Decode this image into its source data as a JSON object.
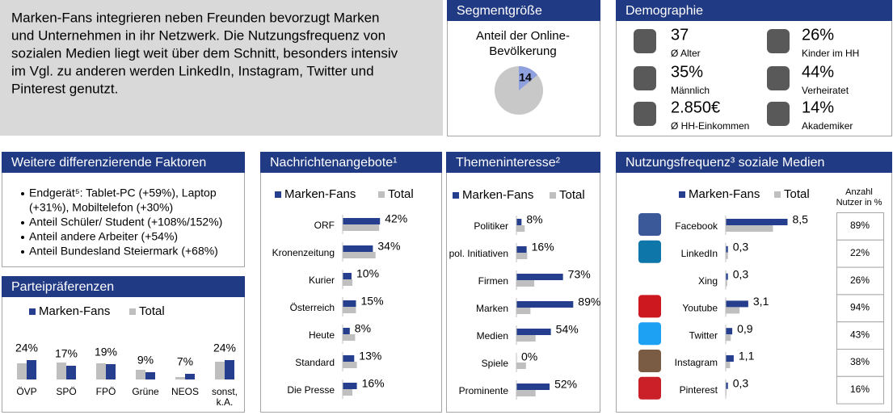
{
  "intro": {
    "lines": [
      "Marken-Fans integrieren neben Freunden bevorzugt Marken",
      "und Unternehmen in ihr Netzwerk. Die Nutzungsfrequenz von",
      "sozialen Medien liegt weit über dem Schnitt, besonders intensiv",
      "im Vgl. zu anderen werden LinkedIn, Instagram, Twitter und",
      "Pinterest genutzt."
    ]
  },
  "demographics": {
    "title": "Demographie",
    "items": [
      {
        "value": "37",
        "label": "Ø Alter"
      },
      {
        "value": "26%",
        "label": "Kinder im HH"
      },
      {
        "value": "35%",
        "label": "Männlich"
      },
      {
        "value": "44%",
        "label": "Verheiratet"
      },
      {
        "value": "2.850€",
        "label": "Ø HH-Einkommen"
      },
      {
        "value": "14%",
        "label": "Akademiker"
      }
    ]
  },
  "factors": {
    "title": "Weitere differenzierende Faktoren",
    "items": [
      [
        "Endgerät⁵: Tablet-PC (+59%), Laptop",
        "(+31%), Mobiltelefon (+30%)"
      ],
      [
        "Anteil Schüler/ Student (+108%/152%)"
      ],
      [
        "Anteil andere Arbeiter (+54%)"
      ],
      [
        "Anteil Bundesland Steiermark (+68%)"
      ]
    ]
  },
  "chart_data": [
    {
      "type": "pie",
      "title": "Segmentgröße",
      "subtitle": [
        "Anteil der Online-",
        "Bevölkerung"
      ],
      "values": [
        14
      ],
      "color": "#8fa0de"
    },
    {
      "type": "bar",
      "orientation": "vertical",
      "title": "Parteipräferenzen",
      "categories": [
        "ÖVP",
        "SPÖ",
        "FPÖ",
        "Grüne",
        "NEOS",
        "sonst, k.A."
      ],
      "ylim": [
        0,
        60
      ],
      "series": [
        {
          "name": "Marken-Fans",
          "color": "#253f8e",
          "values": [
            24,
            17,
            19,
            9,
            7,
            24
          ],
          "value_labels": [
            "24%",
            "17%",
            "19%",
            "9%",
            "7%",
            "24%"
          ]
        },
        {
          "name": "Total",
          "color": "#bfbfbf",
          "values": [
            20,
            21,
            20,
            12,
            3,
            22
          ]
        }
      ]
    },
    {
      "type": "bar",
      "orientation": "horizontal",
      "title": "Nachrichtenangebote¹",
      "categories": [
        "ORF",
        "Kronenzeitung",
        "Kurier",
        "Österreich",
        "Heute",
        "Standard",
        "Die Presse"
      ],
      "xlim": [
        0,
        100
      ],
      "series": [
        {
          "name": "Marken-Fans",
          "color": "#253f8e",
          "values": [
            42,
            34,
            10,
            15,
            8,
            13,
            16
          ],
          "value_labels": [
            "42%",
            "34%",
            "10%",
            "15%",
            "8%",
            "13%",
            "16%"
          ]
        },
        {
          "name": "Total",
          "color": "#bfbfbf",
          "values": [
            41,
            37,
            11,
            15,
            14,
            16,
            11
          ]
        }
      ]
    },
    {
      "type": "bar",
      "orientation": "horizontal",
      "title": "Themeninteresse²",
      "categories": [
        "Politiker",
        "pol. Initiativen",
        "Firmen",
        "Marken",
        "Medien",
        "Spiele",
        "Prominente"
      ],
      "xlim": [
        0,
        100
      ],
      "series": [
        {
          "name": "Marken-Fans",
          "color": "#253f8e",
          "values": [
            8,
            16,
            73,
            89,
            54,
            0,
            52
          ],
          "value_labels": [
            "8%",
            "16%",
            "73%",
            "89%",
            "54%",
            "0%",
            "52%"
          ]
        },
        {
          "name": "Total",
          "color": "#bfbfbf",
          "values": [
            13,
            17,
            28,
            22,
            30,
            15,
            30
          ]
        }
      ]
    },
    {
      "type": "bar",
      "orientation": "horizontal",
      "title": "Nutzungsfrequenz³ soziale Medien",
      "categories": [
        "Facebook",
        "LinkedIn",
        "Xing",
        "Youtube",
        "Twitter",
        "Instagram",
        "Pinterest"
      ],
      "xlim": [
        0,
        10
      ],
      "series": [
        {
          "name": "Marken-Fans",
          "color": "#253f8e",
          "values": [
            8.5,
            0.3,
            0.3,
            3.1,
            0.9,
            1.1,
            0.3
          ],
          "value_labels": [
            "8,5",
            "0,3",
            "0,3",
            "3,1",
            "0,9",
            "1,1",
            "0,3"
          ]
        },
        {
          "name": "Total",
          "color": "#bfbfbf",
          "values": [
            6.5,
            0.3,
            0.2,
            1.9,
            0.7,
            0.6,
            0.1
          ]
        }
      ],
      "users_header": [
        "Anzahl",
        "Nutzer in %"
      ],
      "users": [
        "89%",
        "22%",
        "26%",
        "94%",
        "43%",
        "38%",
        "16%"
      ]
    }
  ]
}
